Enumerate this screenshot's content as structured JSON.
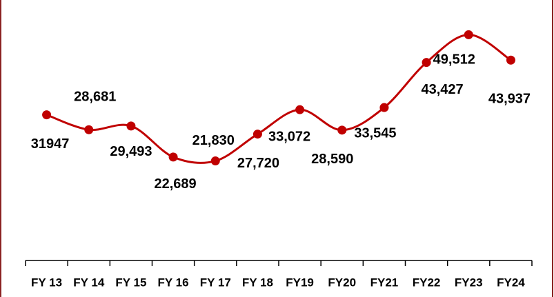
{
  "chart_data": {
    "type": "line",
    "categories": [
      "FY 13",
      "FY 14",
      "FY 15",
      "FY 16",
      "FY 17",
      "FY 18",
      "FY19",
      "FY20",
      "FY21",
      "FY22",
      "FY23",
      "FY24"
    ],
    "values": [
      31947,
      28681,
      29493,
      22689,
      21830,
      27720,
      33072,
      28590,
      33545,
      43427,
      49512,
      43937
    ],
    "value_labels": [
      "31947",
      "28,681",
      "29,493",
      "22,689",
      "21,830",
      "27,720",
      "33,072",
      "28,590",
      "33,545",
      "43,427",
      "49,512",
      "43,937"
    ],
    "color": "#c00000",
    "ylim": [
      0,
      60000
    ]
  }
}
